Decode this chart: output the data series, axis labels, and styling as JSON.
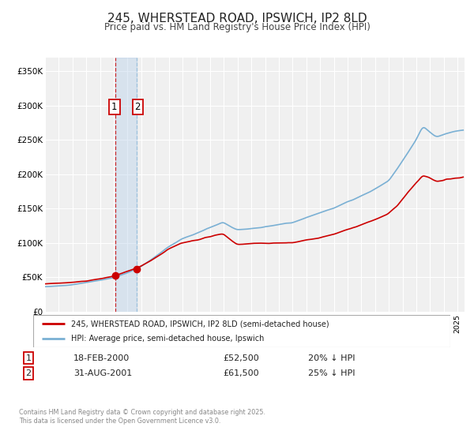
{
  "title": "245, WHERSTEAD ROAD, IPSWICH, IP2 8LD",
  "subtitle": "Price paid vs. HM Land Registry's House Price Index (HPI)",
  "title_fontsize": 11,
  "subtitle_fontsize": 8.5,
  "red_line_label": "245, WHERSTEAD ROAD, IPSWICH, IP2 8LD (semi-detached house)",
  "blue_line_label": "HPI: Average price, semi-detached house, Ipswich",
  "ylim": [
    0,
    370000
  ],
  "xlim_start": 1995.0,
  "xlim_end": 2025.5,
  "yticks": [
    0,
    50000,
    100000,
    150000,
    200000,
    250000,
    300000,
    350000
  ],
  "ytick_labels": [
    "£0",
    "£50K",
    "£100K",
    "£150K",
    "£200K",
    "£250K",
    "£300K",
    "£350K"
  ],
  "bg_color": "#f0f0f0",
  "grid_color": "#ffffff",
  "red_color": "#cc0000",
  "blue_color": "#7ab0d4",
  "purchase1_date": 2000.13,
  "purchase1_price": 52500,
  "purchase1_label": "1",
  "purchase2_date": 2001.66,
  "purchase2_price": 61500,
  "purchase2_label": "2",
  "vspan_start": 2000.13,
  "vspan_end": 2001.66,
  "footer_text1": "Contains HM Land Registry data © Crown copyright and database right 2025.",
  "footer_text2": "This data is licensed under the Open Government Licence v3.0.",
  "table_row1": [
    "1",
    "18-FEB-2000",
    "£52,500",
    "20% ↓ HPI"
  ],
  "table_row2": [
    "2",
    "31-AUG-2001",
    "£61,500",
    "25% ↓ HPI"
  ]
}
